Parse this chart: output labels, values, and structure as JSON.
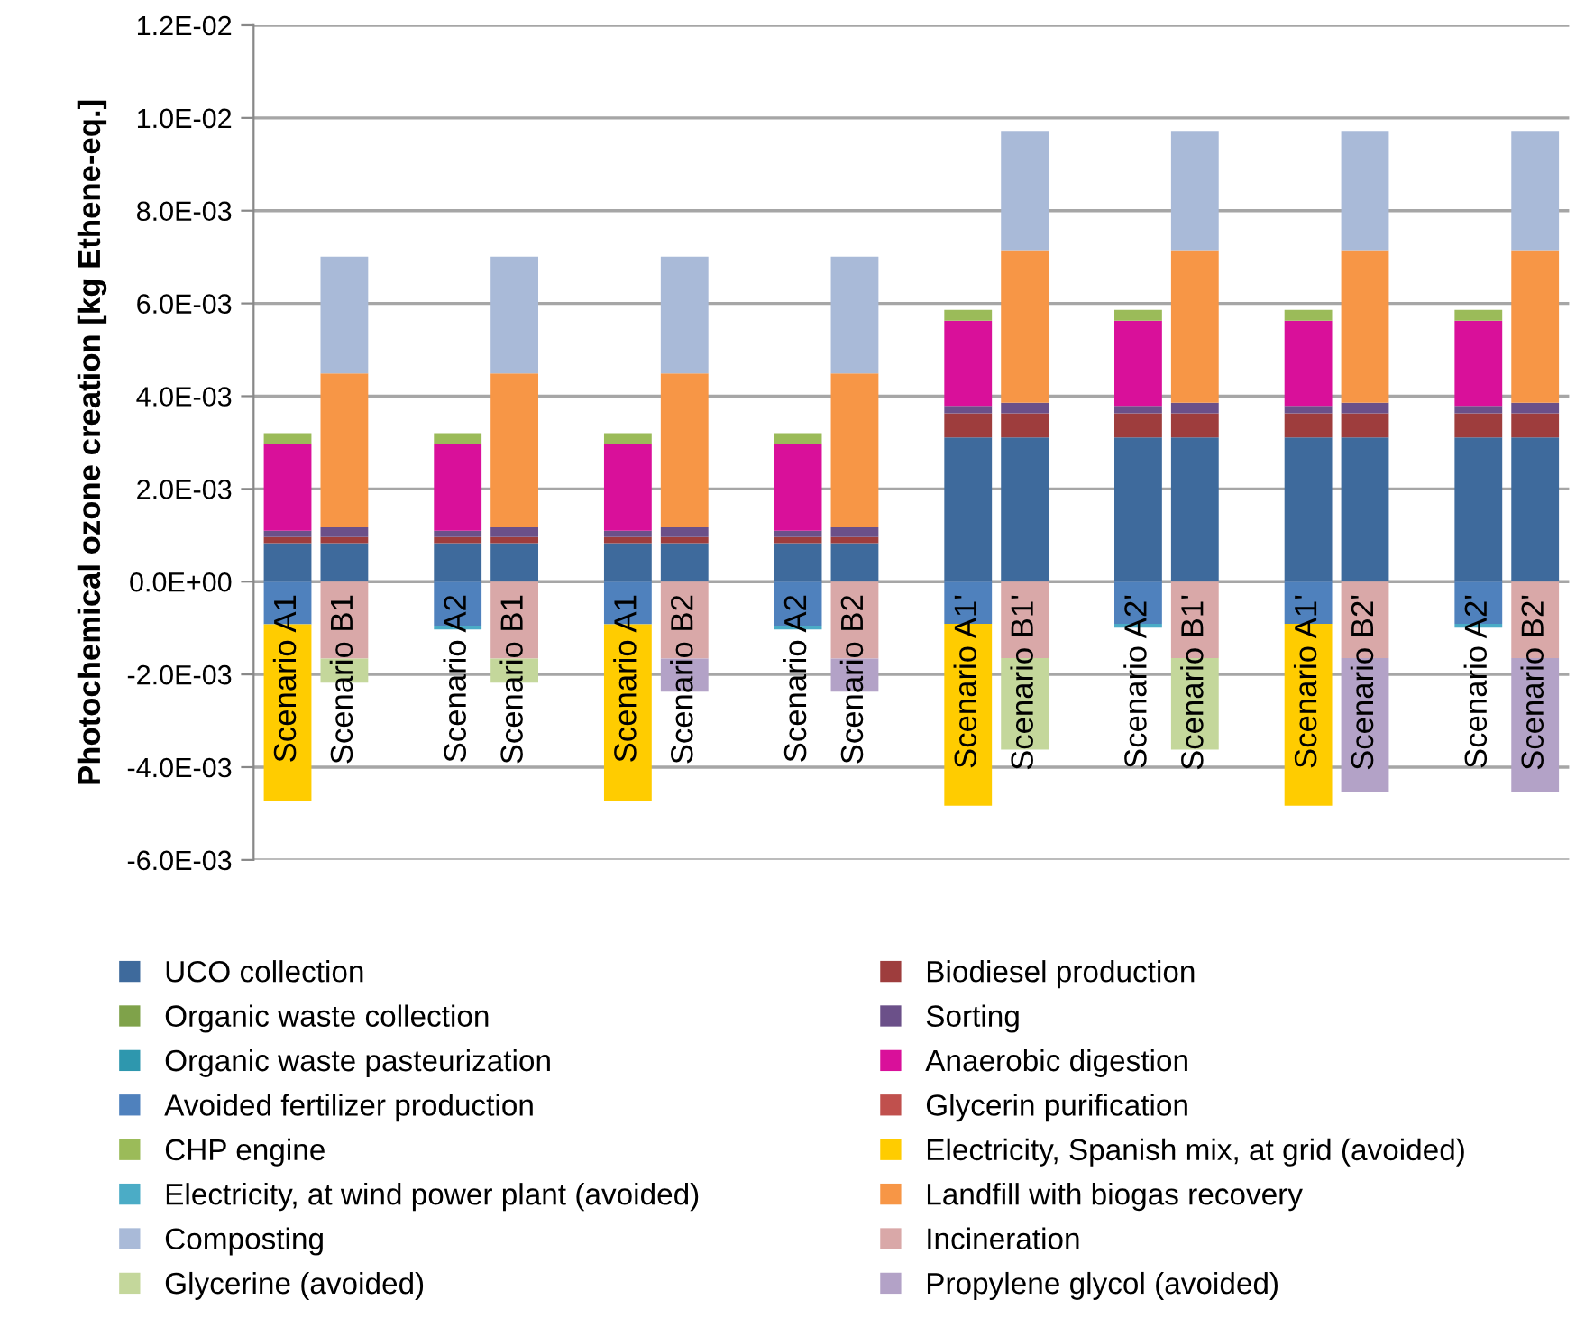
{
  "chart_data": {
    "type": "bar",
    "stacked": true,
    "ylabel": "Photochemical ozone creation [kg Ethene-eq.]",
    "categories": [
      "Scenario A1",
      "Scenario B1",
      null,
      "Scenario A2",
      "Scenario B1",
      null,
      "Scenario A1",
      "Scenario B2",
      null,
      "Scenario A2",
      "Scenario B2",
      null,
      "Scenario A1'",
      "Scenario B1'",
      null,
      "Scenario A2'",
      "Scenario B1'",
      null,
      "Scenario A1'",
      "Scenario B2'",
      null,
      "Scenario A2'",
      "Scenario B2'"
    ],
    "ylim": [
      -0.006,
      0.012
    ],
    "yticks": [
      {
        "value": -0.006,
        "label": "-6.0E-03"
      },
      {
        "value": -0.004,
        "label": "-4.0E-03"
      },
      {
        "value": -0.002,
        "label": "-2.0E-03"
      },
      {
        "value": 0,
        "label": "0.0E+00"
      },
      {
        "value": 0.002,
        "label": "2.0E-03"
      },
      {
        "value": 0.004,
        "label": "4.0E-03"
      },
      {
        "value": 0.006,
        "label": "6.0E-03"
      },
      {
        "value": 0.008,
        "label": "8.0E-03"
      },
      {
        "value": 0.01,
        "label": "1.0E-02"
      },
      {
        "value": 0.012,
        "label": "1.2E-02"
      }
    ],
    "grid": "y",
    "legend": "bottom",
    "series": [
      {
        "name": "UCO collection",
        "color": "#3e6a9c",
        "values": [
          0.00083,
          0.00083,
          null,
          0.00083,
          0.00083,
          null,
          0.00083,
          0.00083,
          null,
          0.00083,
          0.00083,
          null,
          0.00311,
          0.00311,
          null,
          0.00311,
          0.00311,
          null,
          0.00311,
          0.00311,
          null,
          0.00311,
          0.00311
        ]
      },
      {
        "name": "Biodiesel production",
        "color": "#9e3d3d",
        "values": [
          0.00013,
          0.00013,
          null,
          0.00013,
          0.00013,
          null,
          0.00013,
          0.00013,
          null,
          0.00013,
          0.00013,
          null,
          0.00052,
          0.00052,
          null,
          0.00052,
          0.00052,
          null,
          0.00052,
          0.00052,
          null,
          0.00052,
          0.00052
        ]
      },
      {
        "name": "Organic waste collection",
        "color": "#7fa24a",
        "values": [
          null,
          null,
          null,
          null,
          null,
          null,
          null,
          null,
          null,
          null,
          null,
          null,
          null,
          null,
          null,
          null,
          null,
          null,
          null,
          null,
          null,
          null,
          null
        ]
      },
      {
        "name": "Sorting",
        "color": "#6b5089",
        "values": [
          0.00014,
          0.00021,
          null,
          0.00014,
          0.00021,
          null,
          0.00014,
          0.00021,
          null,
          0.00014,
          0.00021,
          null,
          0.00016,
          0.00023,
          null,
          0.00016,
          0.00023,
          null,
          0.00016,
          0.00023,
          null,
          0.00016,
          0.00023
        ]
      },
      {
        "name": "Organic waste pasteurization",
        "color": "#2e97ae",
        "values": [
          null,
          null,
          null,
          null,
          null,
          null,
          null,
          null,
          null,
          null,
          null,
          null,
          null,
          null,
          null,
          null,
          null,
          null,
          null,
          null,
          null,
          null,
          null
        ]
      },
      {
        "name": "Anaerobic digestion",
        "color": "#d9109a",
        "values": [
          0.00187,
          null,
          null,
          0.00187,
          null,
          null,
          0.00187,
          null,
          null,
          0.00187,
          null,
          null,
          0.00184,
          null,
          null,
          0.00184,
          null,
          null,
          0.00184,
          null,
          null,
          0.00184,
          null
        ]
      },
      {
        "name": "Avoided fertilizer production",
        "color": "#4f81bd",
        "values": [
          -0.00092,
          null,
          null,
          -0.00095,
          null,
          null,
          -0.00092,
          null,
          null,
          -0.00095,
          null,
          null,
          -0.00091,
          null,
          null,
          -0.00091,
          null,
          null,
          -0.00091,
          null,
          null,
          -0.00091,
          null
        ]
      },
      {
        "name": "Glycerin purification",
        "color": "#c0504d",
        "values": [
          null,
          null,
          null,
          null,
          null,
          null,
          null,
          null,
          null,
          null,
          null,
          null,
          null,
          null,
          null,
          null,
          null,
          null,
          null,
          null,
          null,
          null,
          null
        ]
      },
      {
        "name": "CHP engine",
        "color": "#9bbb59",
        "values": [
          0.00023,
          null,
          null,
          0.00023,
          null,
          null,
          0.00023,
          null,
          null,
          0.00023,
          null,
          null,
          0.00023,
          null,
          null,
          0.00023,
          null,
          null,
          0.00023,
          null,
          null,
          0.00023,
          null
        ]
      },
      {
        "name": "Electricity, Spanish mix, at grid (avoided)",
        "color": "#ffcc00",
        "values": [
          -0.00381,
          null,
          null,
          null,
          null,
          null,
          -0.00381,
          null,
          null,
          null,
          null,
          null,
          -0.00392,
          null,
          null,
          null,
          null,
          null,
          -0.00392,
          null,
          null,
          null,
          null
        ]
      },
      {
        "name": "Electricity, at wind power plant (avoided)",
        "color": "#4bacc6",
        "values": [
          null,
          null,
          null,
          -8e-05,
          null,
          null,
          null,
          null,
          null,
          -8e-05,
          null,
          null,
          null,
          null,
          null,
          -8e-05,
          null,
          null,
          null,
          null,
          null,
          -8e-05,
          null
        ]
      },
      {
        "name": "Landfill with biogas recovery",
        "color": "#f79646",
        "values": [
          null,
          0.00332,
          null,
          null,
          0.00332,
          null,
          null,
          0.00332,
          null,
          null,
          0.00332,
          null,
          null,
          0.00329,
          null,
          null,
          0.00329,
          null,
          null,
          0.00329,
          null,
          null,
          0.00329
        ]
      },
      {
        "name": "Composting",
        "color": "#a9bad8",
        "values": [
          null,
          0.00252,
          null,
          null,
          0.00252,
          null,
          null,
          0.00252,
          null,
          null,
          0.00252,
          null,
          null,
          0.00257,
          null,
          null,
          0.00257,
          null,
          null,
          0.00257,
          null,
          null,
          0.00257
        ]
      },
      {
        "name": "Incineration",
        "color": "#d9a8a8",
        "values": [
          null,
          -0.00166,
          null,
          null,
          -0.00166,
          null,
          null,
          -0.00166,
          null,
          null,
          -0.00166,
          null,
          null,
          -0.00165,
          null,
          null,
          -0.00165,
          null,
          null,
          -0.00165,
          null,
          null,
          -0.00165
        ]
      },
      {
        "name": "Glycerine (avoided)",
        "color": "#c4d79b",
        "values": [
          null,
          -0.00052,
          null,
          null,
          -0.00052,
          null,
          null,
          null,
          null,
          null,
          null,
          null,
          null,
          -0.00197,
          null,
          null,
          -0.00197,
          null,
          null,
          null,
          null,
          null,
          null
        ]
      },
      {
        "name": "Propylene glycol (avoided)",
        "color": "#b3a2c7",
        "values": [
          null,
          null,
          null,
          null,
          null,
          null,
          null,
          -0.00071,
          null,
          null,
          -0.00071,
          null,
          null,
          null,
          null,
          null,
          null,
          null,
          null,
          -0.00289,
          null,
          null,
          -0.00289
        ]
      }
    ]
  }
}
